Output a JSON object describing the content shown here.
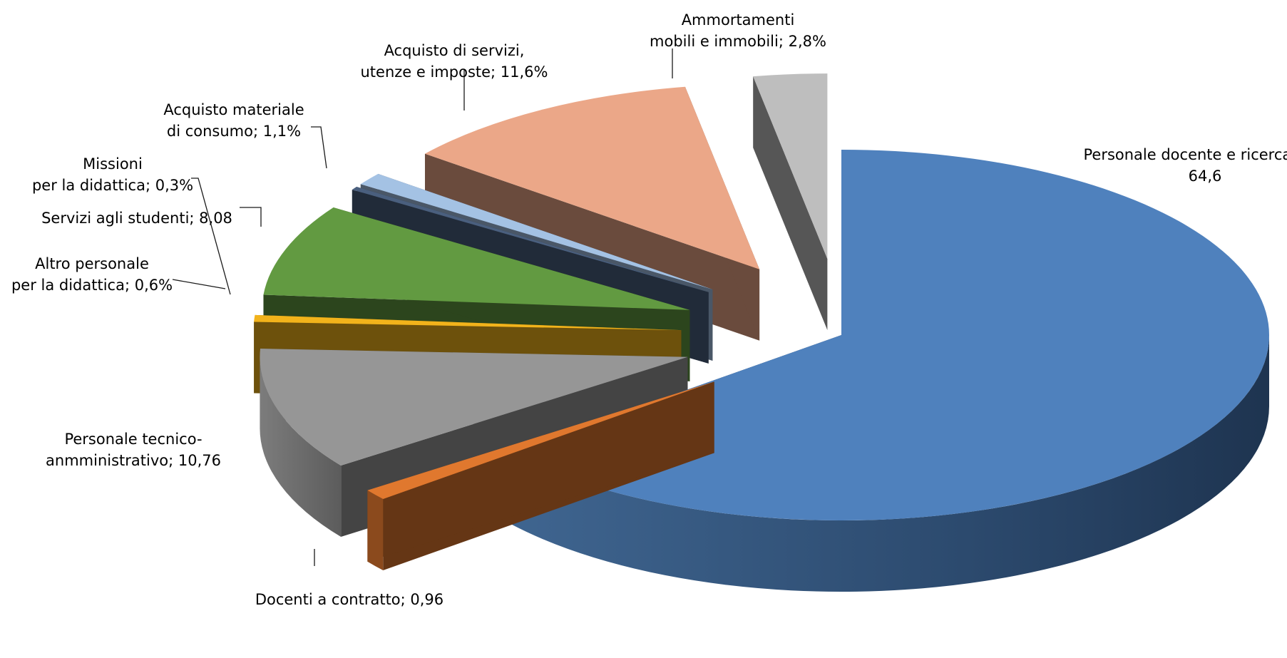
{
  "chart_data": {
    "type": "pie",
    "style": "3d-exploded",
    "title": "",
    "slices": [
      {
        "name": "Personale docente e ricercatore",
        "value": 64.6,
        "label_line1": "Personale docente e ricercatore;",
        "label_line2": "64,6",
        "color": "#4F81BD"
      },
      {
        "name": "Docenti a contratto",
        "value": 0.96,
        "label_line1": "Docenti a contratto; 0,96",
        "label_line2": "",
        "color": "#E0782E"
      },
      {
        "name": "Personale tecnico-anmministrativo",
        "value": 10.76,
        "label_line1": "Personale tecnico-",
        "label_line2": "anmministrativo; 10,76",
        "color": "#969696"
      },
      {
        "name": "Altro personale per la didattica",
        "value": 0.6,
        "label_line1": "Altro personale",
        "label_line2": "per la didattica; 0,6%",
        "color": "#F2B31B"
      },
      {
        "name": "Servizi agli studenti",
        "value": 8.08,
        "label_line1": "Servizi agli studenti; 8,08",
        "label_line2": "",
        "color": "#629A41"
      },
      {
        "name": "Missioni per la didattica",
        "value": 0.3,
        "label_line1": "Missioni",
        "label_line2": "per la didattica; 0,3%",
        "color": "#4A5F7E"
      },
      {
        "name": "Acquisto materiale di consumo",
        "value": 1.1,
        "label_line1": "Acquisto materiale",
        "label_line2": "di consumo; 1,1%",
        "color": "#A4C2E4"
      },
      {
        "name": "Acquisto di servizi, utenze e imposte",
        "value": 11.6,
        "label_line1": "Acquisto di servizi,",
        "label_line2": "utenze e imposte; 11,6%",
        "color": "#EBA788"
      },
      {
        "name": "Ammortamenti mobili e immobili",
        "value": 2.8,
        "label_line1": "Ammortamenti",
        "label_line2": "mobili e immobili; 2,8%",
        "color": "#BEBEBE"
      }
    ],
    "legend": "none",
    "data_labels": "outside-with-leader-lines"
  }
}
